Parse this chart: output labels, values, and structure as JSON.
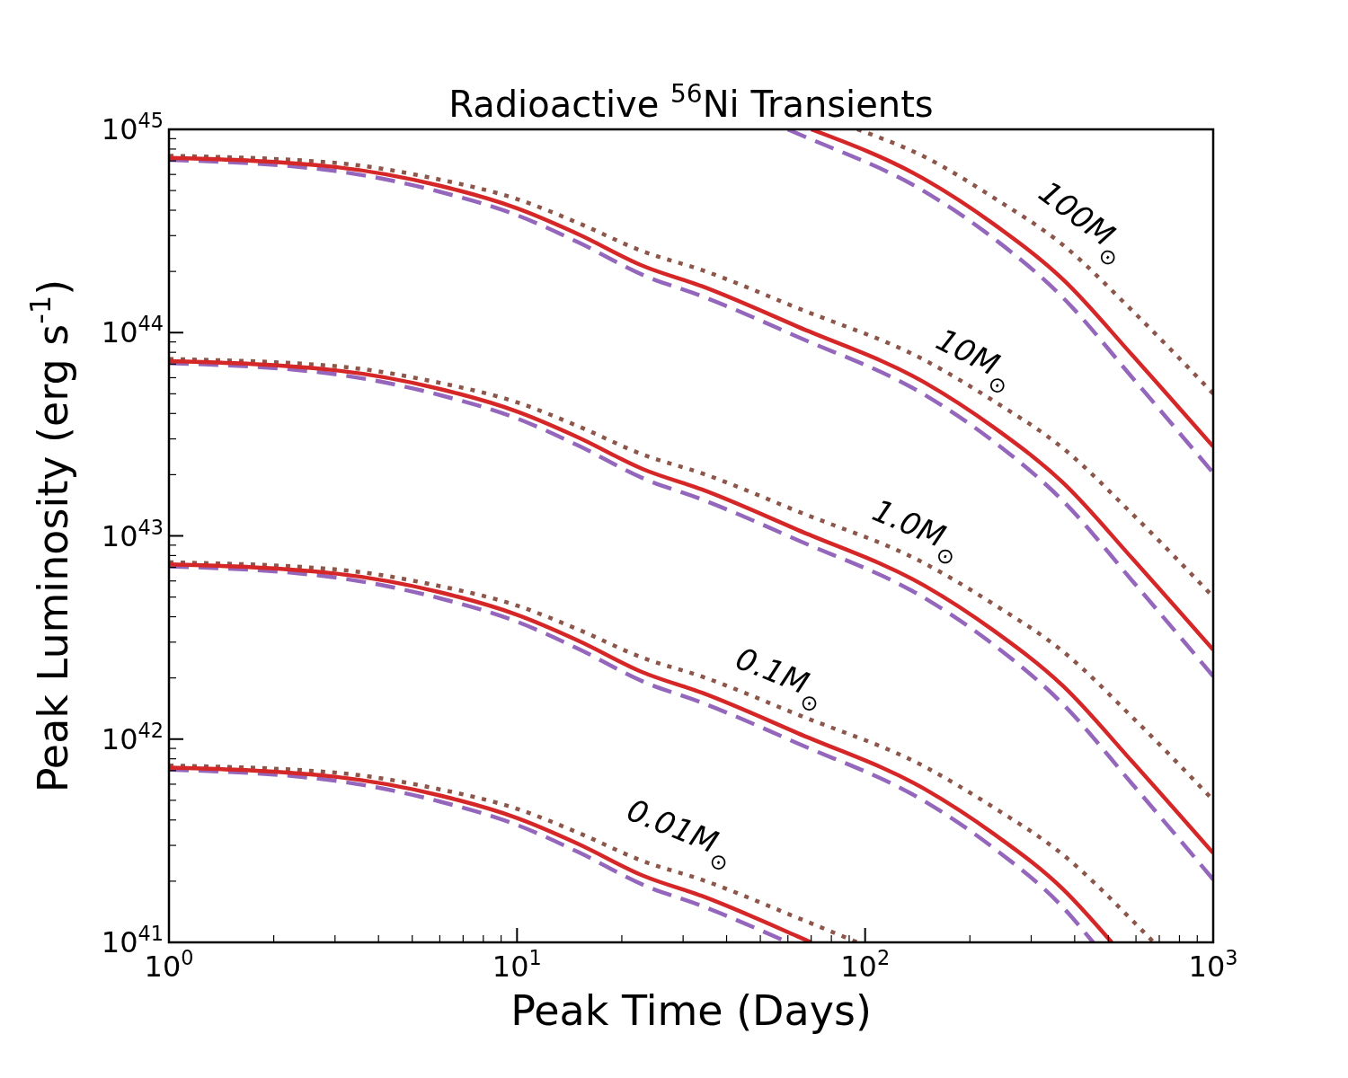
{
  "chart_data": {
    "type": "line",
    "title": "Radioactive $^{56}$Ni Transients",
    "xlabel": "Peak Time (Days)",
    "ylabel": "Peak Luminosity (erg s$^{-1}$)",
    "log": "xy",
    "xlim": [
      1,
      1000
    ],
    "ylim": [
      1e+41,
      1e+45
    ],
    "xticks": [
      {
        "value": 1,
        "label": "10$^{0}$"
      },
      {
        "value": 2,
        "label": null
      },
      {
        "value": 3,
        "label": null
      },
      {
        "value": 4,
        "label": null
      },
      {
        "value": 5,
        "label": null
      },
      {
        "value": 6,
        "label": null
      },
      {
        "value": 7,
        "label": null
      },
      {
        "value": 8,
        "label": null
      },
      {
        "value": 9,
        "label": null
      },
      {
        "value": 10,
        "label": "10$^{1}$"
      },
      {
        "value": 20,
        "label": null
      },
      {
        "value": 30,
        "label": null
      },
      {
        "value": 40,
        "label": null
      },
      {
        "value": 50,
        "label": null
      },
      {
        "value": 60,
        "label": null
      },
      {
        "value": 70,
        "label": null
      },
      {
        "value": 80,
        "label": null
      },
      {
        "value": 90,
        "label": null
      },
      {
        "value": 100,
        "label": "10$^{2}$"
      },
      {
        "value": 200,
        "label": null
      },
      {
        "value": 300,
        "label": null
      },
      {
        "value": 400,
        "label": null
      },
      {
        "value": 500,
        "label": null
      },
      {
        "value": 600,
        "label": null
      },
      {
        "value": 700,
        "label": null
      },
      {
        "value": 800,
        "label": null
      },
      {
        "value": 900,
        "label": null
      },
      {
        "value": 1000,
        "label": "10$^{3}$"
      }
    ],
    "yticks": [
      {
        "value": 1e+41,
        "label": "10$^{41}$"
      },
      {
        "value": 2e+41,
        "label": null
      },
      {
        "value": 3e+41,
        "label": null
      },
      {
        "value": 4e+41,
        "label": null
      },
      {
        "value": 5e+41,
        "label": null
      },
      {
        "value": 6e+41,
        "label": null
      },
      {
        "value": 7e+41,
        "label": null
      },
      {
        "value": 8e+41,
        "label": null
      },
      {
        "value": 9e+41,
        "label": null
      },
      {
        "value": 1e+42,
        "label": "10$^{42}$"
      },
      {
        "value": 2e+42,
        "label": null
      },
      {
        "value": 3e+42,
        "label": null
      },
      {
        "value": 4e+42,
        "label": null
      },
      {
        "value": 5e+42,
        "label": null
      },
      {
        "value": 6e+42,
        "label": null
      },
      {
        "value": 7e+42,
        "label": null
      },
      {
        "value": 8e+42,
        "label": null
      },
      {
        "value": 9e+42,
        "label": null
      },
      {
        "value": 1e+43,
        "label": "10$^{43}$"
      },
      {
        "value": 2e+43,
        "label": null
      },
      {
        "value": 3e+43,
        "label": null
      },
      {
        "value": 4e+43,
        "label": null
      },
      {
        "value": 5e+43,
        "label": null
      },
      {
        "value": 6e+43,
        "label": null
      },
      {
        "value": 7e+43,
        "label": null
      },
      {
        "value": 8e+43,
        "label": null
      },
      {
        "value": 9e+43,
        "label": null
      },
      {
        "value": 1e+44,
        "label": "10$^{44}$"
      },
      {
        "value": 2e+44,
        "label": null
      },
      {
        "value": 3e+44,
        "label": null
      },
      {
        "value": 4e+44,
        "label": null
      },
      {
        "value": 5e+44,
        "label": null
      },
      {
        "value": 6e+44,
        "label": null
      },
      {
        "value": 7e+44,
        "label": null
      },
      {
        "value": 8e+44,
        "label": null
      },
      {
        "value": 9e+44,
        "label": null
      },
      {
        "value": 1e+45,
        "label": "10$^{45}$"
      }
    ],
    "series": [
      {
        "color": "#8c564b",
        "line_style": "dotted",
        "x": [
          95,
          148,
          234,
          371,
          586,
          1000
        ],
        "values": [
          1e+45,
          7.33e+44,
          4.61e+44,
          2.69e+44,
          1.28e+44,
          5.01e+43
        ]
      },
      {
        "color": "#9467bd",
        "line_style": "dashed",
        "x": [
          60,
          64,
          148,
          234,
          371,
          586,
          1000
        ],
        "values": [
          1e+45,
          9.53e+44,
          4.95e+44,
          2.91e+44,
          1.48e+44,
          6e+43,
          2.04e+43
        ]
      },
      {
        "color": "#d62728",
        "line_style": "solid",
        "x": [
          70,
          148,
          234,
          371,
          586,
          1000
        ],
        "values": [
          1e+45,
          5.69e+44,
          3.42e+44,
          1.82e+44,
          7.73e+43,
          2.75e+43
        ]
      },
      {
        "color": "#8c564b",
        "line_style": "dotted",
        "x": [
          1,
          3,
          6,
          10,
          15,
          23,
          34,
          64,
          148,
          234,
          371,
          586,
          1000
        ],
        "values": [
          7.41e+44,
          6.84e+44,
          5.66e+44,
          4.54e+44,
          3.46e+44,
          2.51e+44,
          2.03e+44,
          1.32e+44,
          7.33e+43,
          4.61e+43,
          2.69e+43,
          1.28e+43,
          5.01e+42
        ]
      },
      {
        "color": "#9467bd",
        "line_style": "dashed",
        "x": [
          1,
          3,
          6,
          10,
          15,
          23,
          34,
          64,
          148,
          234,
          371,
          586,
          1000
        ],
        "values": [
          7.08e+44,
          6.24e+44,
          4.93e+44,
          3.78e+44,
          2.78e+44,
          1.92e+44,
          1.51e+44,
          9.53e+43,
          4.95e+43,
          2.91e+43,
          1.48e+43,
          6e+42,
          2.04e+42
        ]
      },
      {
        "color": "#d62728",
        "line_style": "solid",
        "x": [
          1,
          3,
          6,
          10,
          15,
          23,
          34,
          64,
          148,
          234,
          371,
          586,
          1000
        ],
        "values": [
          7.24e+44,
          6.53e+44,
          5.28e+44,
          4.09e+44,
          3.05e+44,
          2.13e+44,
          1.69e+44,
          1.07e+44,
          5.69e+43,
          3.42e+43,
          1.82e+43,
          7.73e+42,
          2.75e+42
        ]
      },
      {
        "color": "#8c564b",
        "line_style": "dotted",
        "x": [
          1,
          3,
          6,
          10,
          15,
          23,
          34,
          64,
          148,
          234,
          371,
          586,
          1000
        ],
        "values": [
          7.41e+43,
          6.84e+43,
          5.66e+43,
          4.54e+43,
          3.46e+43,
          2.51e+43,
          2.03e+43,
          1.32e+43,
          7.33e+42,
          4.61e+42,
          2.69e+42,
          1.28e+42,
          5.01e+41
        ]
      },
      {
        "color": "#9467bd",
        "line_style": "dashed",
        "x": [
          1,
          3,
          6,
          10,
          15,
          23,
          34,
          64,
          148,
          234,
          371,
          586,
          1000
        ],
        "values": [
          7.08e+43,
          6.24e+43,
          4.93e+43,
          3.78e+43,
          2.78e+43,
          1.92e+43,
          1.51e+43,
          9.53e+42,
          4.95e+42,
          2.91e+42,
          1.48e+42,
          6e+41,
          2.04e+41
        ]
      },
      {
        "color": "#d62728",
        "line_style": "solid",
        "x": [
          1,
          3,
          6,
          10,
          15,
          23,
          34,
          64,
          148,
          234,
          371,
          586,
          1000
        ],
        "values": [
          7.24e+43,
          6.53e+43,
          5.28e+43,
          4.09e+43,
          3.05e+43,
          2.13e+43,
          1.69e+43,
          1.07e+43,
          5.69e+42,
          3.42e+42,
          1.82e+42,
          7.73e+41,
          2.75e+41
        ]
      },
      {
        "color": "#8c564b",
        "line_style": "dotted",
        "x": [
          1,
          3,
          6,
          10,
          15,
          23,
          34,
          64,
          148,
          234,
          371,
          586,
          675
        ],
        "values": [
          7.41e+42,
          6.84e+42,
          5.66e+42,
          4.54e+42,
          3.46e+42,
          2.51e+42,
          2.03e+42,
          1.32e+42,
          7.33e+41,
          4.61e+41,
          2.69e+41,
          1.28e+41,
          1e+41
        ]
      },
      {
        "color": "#9467bd",
        "line_style": "dashed",
        "x": [
          1,
          3,
          6,
          10,
          15,
          23,
          34,
          64,
          148,
          234,
          371,
          452
        ],
        "values": [
          7.08e+42,
          6.24e+42,
          4.93e+42,
          3.78e+42,
          2.78e+42,
          1.92e+42,
          1.51e+42,
          9.53e+41,
          4.95e+41,
          2.91e+41,
          1.48e+41,
          1e+41
        ]
      },
      {
        "color": "#d62728",
        "line_style": "solid",
        "x": [
          1,
          3,
          6,
          10,
          15,
          23,
          34,
          64,
          148,
          234,
          371,
          511
        ],
        "values": [
          7.24e+42,
          6.53e+42,
          5.28e+42,
          4.09e+42,
          3.05e+42,
          2.13e+42,
          1.69e+42,
          1.07e+42,
          5.69e+41,
          3.42e+41,
          1.82e+41,
          1e+41
        ]
      },
      {
        "color": "#8c564b",
        "line_style": "dotted",
        "x": [
          1,
          3,
          6,
          10,
          15,
          23,
          34,
          64,
          95
        ],
        "values": [
          7.41e+41,
          6.84e+41,
          5.66e+41,
          4.54e+41,
          3.46e+41,
          2.51e+41,
          2.03e+41,
          1.32e+41,
          1e+41
        ]
      },
      {
        "color": "#9467bd",
        "line_style": "dashed",
        "x": [
          1,
          3,
          6,
          10,
          15,
          23,
          34,
          60
        ],
        "values": [
          7.08e+41,
          6.24e+41,
          4.93e+41,
          3.78e+41,
          2.78e+41,
          1.92e+41,
          1.51e+41,
          1e+41
        ]
      },
      {
        "color": "#d62728",
        "line_style": "solid",
        "x": [
          1,
          3,
          6,
          10,
          15,
          23,
          34,
          64,
          70
        ],
        "values": [
          7.24e+41,
          6.53e+41,
          5.28e+41,
          4.09e+41,
          3.05e+41,
          2.13e+41,
          1.69e+41,
          1.07e+41,
          1e+41
        ]
      }
    ],
    "annotations": [
      "100M$_{⊙}$",
      "10M$_{⊙}$",
      "1.0M$_{⊙}$",
      "0.1M$_{⊙}$",
      "0.01M$_{⊙}$"
    ]
  }
}
